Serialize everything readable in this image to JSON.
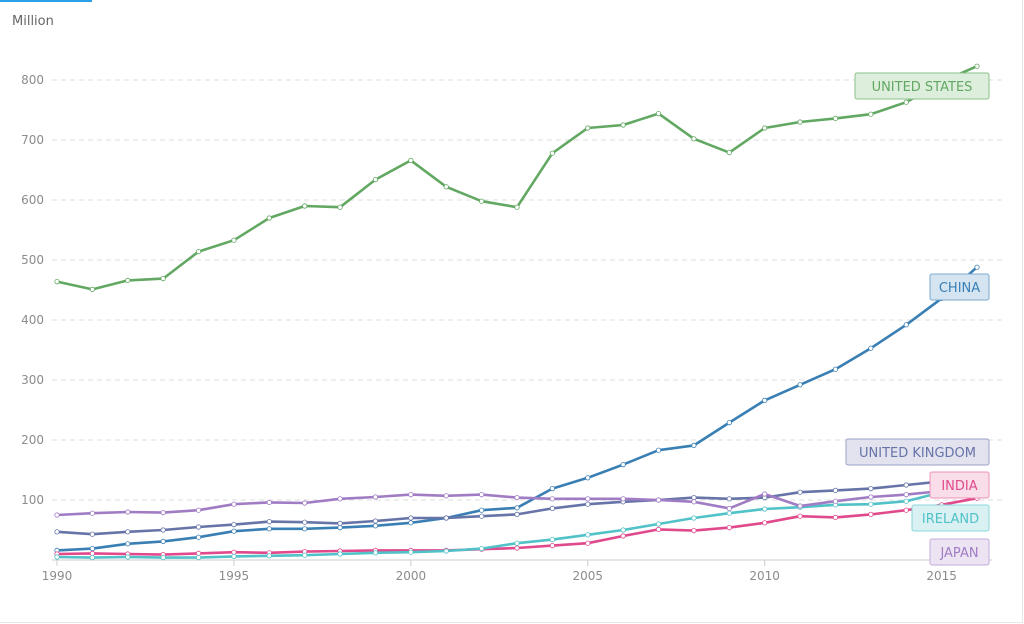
{
  "chart_data": {
    "type": "line",
    "unit_label": "Million",
    "x": [
      1990,
      1991,
      1992,
      1993,
      1994,
      1995,
      1996,
      1997,
      1998,
      1999,
      2000,
      2001,
      2002,
      2003,
      2004,
      2005,
      2006,
      2007,
      2008,
      2009,
      2010,
      2011,
      2012,
      2013,
      2014,
      2015,
      2016
    ],
    "x_ticks": [
      "1990",
      "1995",
      "2000",
      "2005",
      "2010",
      "2015"
    ],
    "y_ticks": [
      "100",
      "200",
      "300",
      "400",
      "500",
      "600",
      "700",
      "800"
    ],
    "xlim": [
      1990,
      2016.8
    ],
    "ylim": [
      0,
      900
    ],
    "grid": "horizontal dashed",
    "series": [
      {
        "name": "UNITED STATES",
        "color": "#62a862",
        "label_bg": "#ddeedd",
        "label_border": "#8cc08c",
        "values": [
          464,
          451,
          466,
          469,
          514,
          533,
          570,
          590,
          588,
          634,
          666,
          622,
          598,
          588,
          678,
          720,
          725,
          744,
          702,
          679,
          720,
          730,
          736,
          743,
          763,
          797,
          823
        ]
      },
      {
        "name": "CHINA",
        "color": "#3a7fb4",
        "label_bg": "#d4e4f1",
        "label_border": "#7ea9cf",
        "values": [
          16,
          19,
          27,
          31,
          38,
          48,
          52,
          52,
          54,
          57,
          62,
          70,
          83,
          87,
          119,
          137,
          159,
          183,
          191,
          229,
          266,
          292,
          318,
          353,
          392,
          436,
          488
        ]
      },
      {
        "name": "UNITED KINGDOM",
        "color": "#6674a8",
        "label_bg": "#e2e3ef",
        "label_border": "#9ba2c6",
        "values": [
          47,
          43,
          47,
          50,
          55,
          59,
          64,
          63,
          61,
          65,
          70,
          70,
          73,
          76,
          86,
          93,
          97,
          100,
          104,
          102,
          104,
          113,
          116,
          119,
          125,
          131,
          137
        ]
      },
      {
        "name": "INDIA",
        "color": "#e04a8d",
        "label_bg": "#f9dde9",
        "label_border": "#ec93b9",
        "values": [
          10,
          11,
          10,
          9,
          11,
          13,
          12,
          14,
          15,
          16,
          16,
          16,
          18,
          20,
          24,
          28,
          40,
          51,
          49,
          54,
          62,
          73,
          71,
          76,
          83,
          92,
          103
        ]
      },
      {
        "name": "IRELAND",
        "color": "#50c2c8",
        "label_bg": "#d9f1f2",
        "label_border": "#8ad7db",
        "values": [
          5,
          4,
          5,
          4,
          4,
          6,
          7,
          8,
          10,
          12,
          13,
          15,
          19,
          28,
          34,
          42,
          50,
          60,
          70,
          78,
          85,
          88,
          92,
          93,
          98,
          113,
          125
        ]
      },
      {
        "name": "JAPAN",
        "color": "#a07cc4",
        "label_bg": "#ece4f3",
        "label_border": "#c4addc",
        "values": [
          75,
          78,
          80,
          79,
          83,
          93,
          96,
          95,
          102,
          105,
          109,
          107,
          109,
          104,
          102,
          102,
          102,
          100,
          97,
          86,
          110,
          90,
          98,
          105,
          109,
          115,
          121
        ]
      }
    ]
  }
}
